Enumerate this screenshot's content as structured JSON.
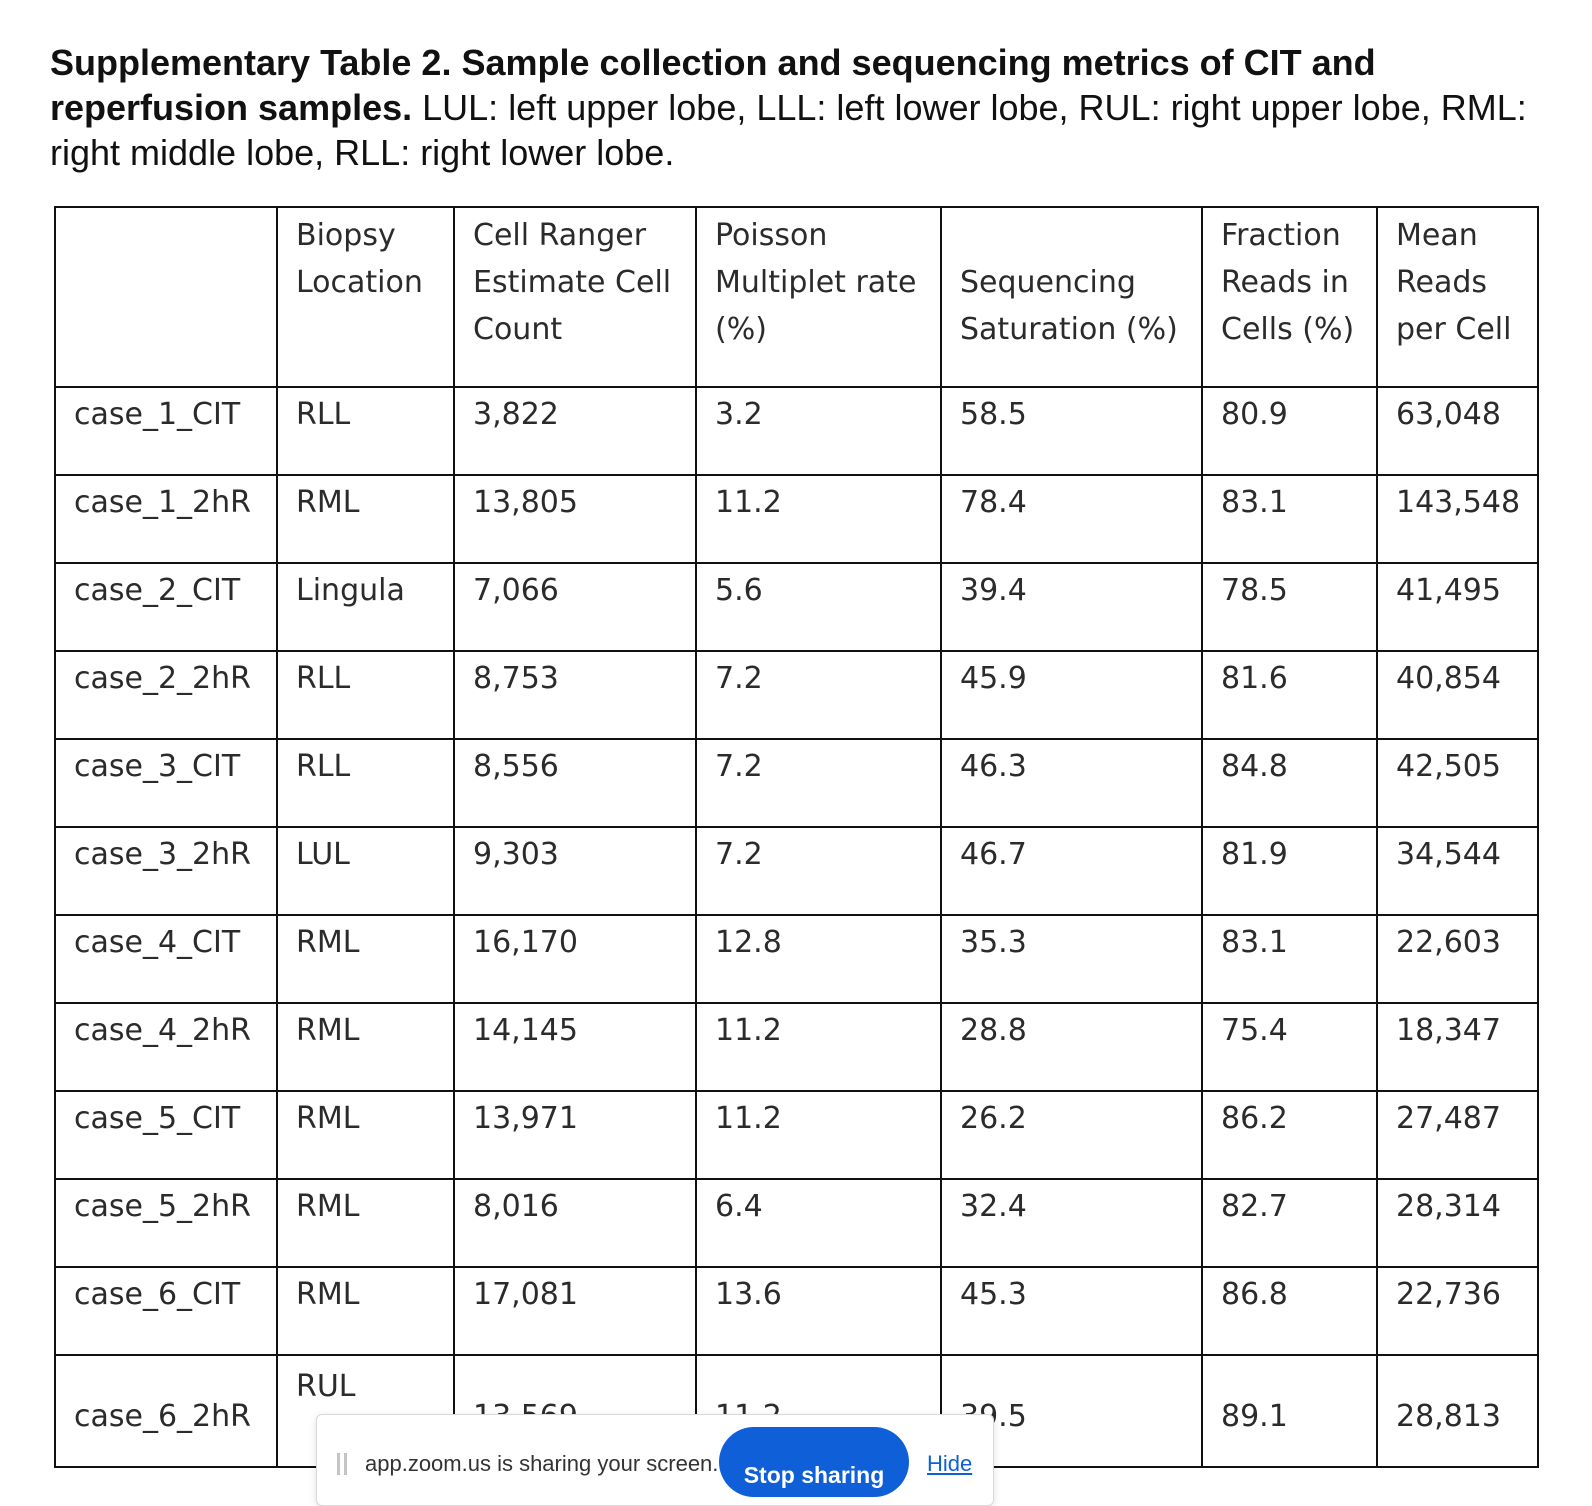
{
  "caption": {
    "bold": "Supplementary Table 2. Sample collection and sequencing metrics of CIT and reperfusion samples.",
    "rest": " LUL: left upper lobe, LLL: left lower lobe, RUL: right upper lobe, RML: right middle lobe, RLL: right lower lobe."
  },
  "table": {
    "headers": [
      "",
      "Biopsy Location",
      "Cell Ranger Estimate Cell Count",
      "Poisson Multiplet rate (%)",
      "Sequencing Saturation (%)",
      "Fraction Reads in Cells (%)",
      "Mean Reads per Cell"
    ],
    "rows": [
      [
        "case_1_CIT",
        "RLL",
        "3,822",
        "3.2",
        "58.5",
        "80.9",
        "63,048"
      ],
      [
        "case_1_2hR",
        "RML",
        "13,805",
        "11.2",
        "78.4",
        "83.1",
        "143,548"
      ],
      [
        "case_2_CIT",
        "Lingula",
        "7,066",
        "5.6",
        "39.4",
        "78.5",
        "41,495"
      ],
      [
        "case_2_2hR",
        "RLL",
        "8,753",
        "7.2",
        "45.9",
        "81.6",
        "40,854"
      ],
      [
        "case_3_CIT",
        "RLL",
        "8,556",
        "7.2",
        "46.3",
        "84.8",
        "42,505"
      ],
      [
        "case_3_2hR",
        "LUL",
        "9,303",
        "7.2",
        "46.7",
        "81.9",
        "34,544"
      ],
      [
        "case_4_CIT",
        "RML",
        "16,170",
        "12.8",
        "35.3",
        "83.1",
        "22,603"
      ],
      [
        "case_4_2hR",
        "RML",
        "14,145",
        "11.2",
        "28.8",
        "75.4",
        "18,347"
      ],
      [
        "case_5_CIT",
        "RML",
        "13,971",
        "11.2",
        "26.2",
        "86.2",
        "27,487"
      ],
      [
        "case_5_2hR",
        "RML",
        "8,016",
        "6.4",
        "32.4",
        "82.7",
        "28,314"
      ],
      [
        "case_6_CIT",
        "RML",
        "17,081",
        "13.6",
        "45.3",
        "86.8",
        "22,736"
      ],
      [
        "case_6_2hR",
        "RUL",
        "13,569",
        "11.2",
        "39.5",
        "89.1",
        "28,813"
      ]
    ]
  },
  "share_bar": {
    "message": "app.zoom.us is sharing your screen.",
    "stop_label": "Stop sharing",
    "hide_label": "Hide"
  }
}
